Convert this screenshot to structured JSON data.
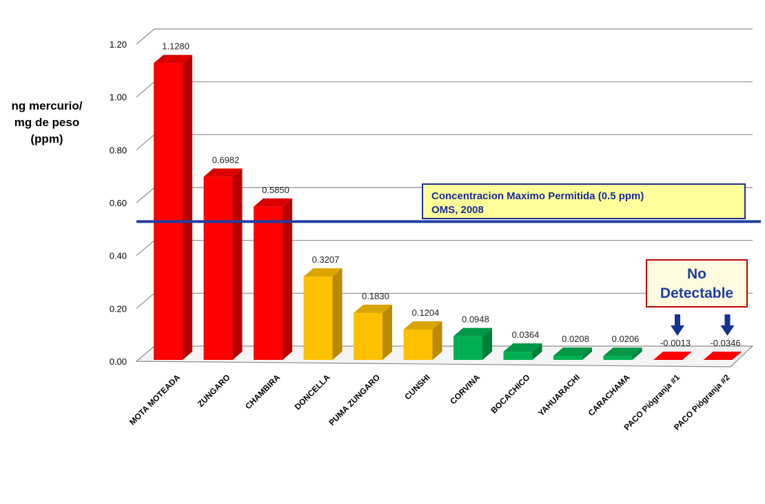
{
  "chart_data": {
    "type": "bar",
    "categories": [
      "MOTA MOTEADA",
      "ZUNGARO",
      "CHAMBIRA",
      "DONCELLA",
      "PUMA ZUNGARO",
      "CUNSHI",
      "CORVINA",
      "BOCACHICO",
      "YAHUARACHI",
      "CARACHAMA",
      "PACO Piógranja #1",
      "PACO Piógranja #2"
    ],
    "values": [
      1.128,
      0.6982,
      0.585,
      0.3207,
      0.183,
      0.1204,
      0.0948,
      0.0364,
      0.0208,
      0.0206,
      -0.0013,
      -0.0346
    ],
    "value_labels": [
      "1.1280",
      "0.6982",
      "0.5850",
      "0.3207",
      "0.1830",
      "0.1204",
      "0.0948",
      "0.0364",
      "0.0208",
      "0.0206",
      "-0.0013",
      "-0.0346"
    ],
    "bar_colors": [
      "#ff0000",
      "#ff0000",
      "#ff0000",
      "#ffc000",
      "#ffc000",
      "#ffc000",
      "#00b050",
      "#00b050",
      "#00b050",
      "#00b050",
      "#ff0000",
      "#ff0000"
    ],
    "ylabel_lines": [
      "ng  mercurio/",
      "mg de peso",
      "(ppm)"
    ],
    "ylim": [
      0,
      1.2
    ],
    "yticks": [
      "0.00",
      "0.20",
      "0.40",
      "0.60",
      "0.80",
      "1.00",
      "1.20"
    ],
    "grid": true,
    "reference_line": {
      "value": 0.5,
      "color": "#1f3f9f",
      "label_lines": [
        "Concentracion Maximo Permitida  (0.5 ppm)",
        "OMS, 2008"
      ]
    },
    "callout": {
      "lines": [
        "No",
        "Detectable"
      ],
      "arrow_targets": [
        "PACO Piógranja #1",
        "PACO Piógranja #2"
      ]
    }
  }
}
